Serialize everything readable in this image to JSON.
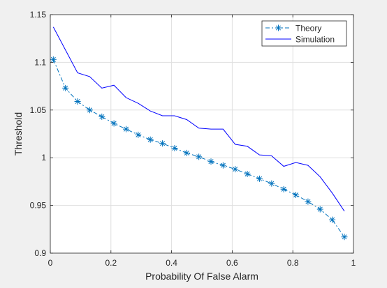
{
  "chart_data": {
    "type": "line",
    "title": "",
    "xlabel": "Probability Of False Alarm",
    "ylabel": "Threshold",
    "xlim": [
      0,
      1
    ],
    "ylim": [
      0.9,
      1.15
    ],
    "x_ticks": [
      0,
      0.2,
      0.4,
      0.6,
      0.8,
      1
    ],
    "x_tick_labels": [
      "0",
      "0.2",
      "0.4",
      "0.6",
      "0.8",
      "1"
    ],
    "y_ticks": [
      0.9,
      0.95,
      1,
      1.05,
      1.1,
      1.15
    ],
    "y_tick_labels": [
      "0.9",
      "0.95",
      "1",
      "1.05",
      "1.1",
      "1.15"
    ],
    "grid": true,
    "legend": {
      "position": "top-right"
    },
    "x": [
      0.01,
      0.05,
      0.09,
      0.13,
      0.17,
      0.21,
      0.25,
      0.29,
      0.33,
      0.37,
      0.41,
      0.45,
      0.49,
      0.53,
      0.57,
      0.61,
      0.65,
      0.69,
      0.73,
      0.77,
      0.81,
      0.85,
      0.89,
      0.93,
      0.97
    ],
    "series": [
      {
        "name": "Theory",
        "style": "dash-dot",
        "marker": "asterisk",
        "color": "#0072bd",
        "values": [
          1.103,
          1.073,
          1.059,
          1.05,
          1.043,
          1.036,
          1.03,
          1.024,
          1.019,
          1.015,
          1.01,
          1.005,
          1.001,
          0.996,
          0.992,
          0.988,
          0.983,
          0.978,
          0.973,
          0.967,
          0.961,
          0.954,
          0.946,
          0.935,
          0.917
        ]
      },
      {
        "name": "Simulation",
        "style": "solid",
        "marker": "none",
        "color": "#0000ff",
        "values": [
          1.137,
          1.113,
          1.089,
          1.085,
          1.073,
          1.076,
          1.063,
          1.057,
          1.049,
          1.044,
          1.044,
          1.04,
          1.031,
          1.03,
          1.03,
          1.014,
          1.012,
          1.003,
          1.002,
          0.991,
          0.995,
          0.992,
          0.98,
          0.963,
          0.944
        ]
      }
    ]
  }
}
